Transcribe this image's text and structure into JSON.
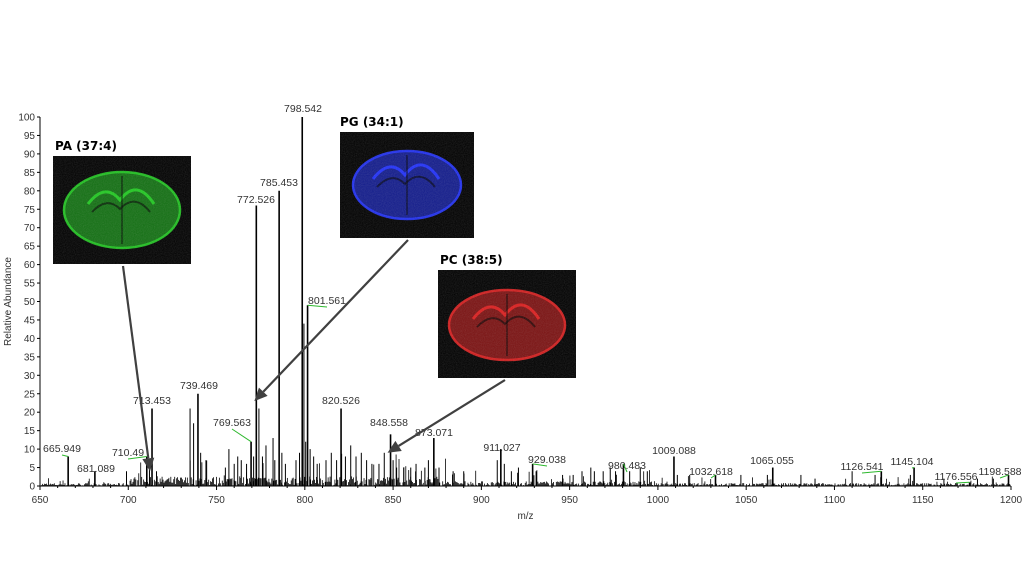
{
  "chart_data": {
    "type": "bar",
    "title": "",
    "xlabel": "m/z",
    "ylabel": "Relative Abundance",
    "xlim": [
      650,
      1200
    ],
    "ylim": [
      0,
      100
    ],
    "x_ticks": [
      "650",
      "700",
      "750",
      "800",
      "850",
      "900",
      "950",
      "1000",
      "1050",
      "1100",
      "1150",
      "1200"
    ],
    "y_ticks": [
      "0",
      "5",
      "10",
      "15",
      "20",
      "25",
      "30",
      "35",
      "40",
      "45",
      "50",
      "55",
      "60",
      "65",
      "70",
      "75",
      "80",
      "85",
      "90",
      "95",
      "100"
    ],
    "grid": false,
    "labeled_peaks": [
      {
        "mz": 665.949,
        "y": 8,
        "label": "665.949"
      },
      {
        "mz": 681.089,
        "y": 4,
        "label": "681.089"
      },
      {
        "mz": 710.49,
        "y": 8,
        "label": "710.49"
      },
      {
        "mz": 713.453,
        "y": 21,
        "label": "713.453"
      },
      {
        "mz": 739.469,
        "y": 25,
        "label": "739.469"
      },
      {
        "mz": 769.563,
        "y": 12,
        "label": "769.563"
      },
      {
        "mz": 772.526,
        "y": 76,
        "label": "772.526"
      },
      {
        "mz": 785.453,
        "y": 80,
        "label": "785.453"
      },
      {
        "mz": 798.542,
        "y": 100,
        "label": "798.542"
      },
      {
        "mz": 801.561,
        "y": 49,
        "label": "801.561"
      },
      {
        "mz": 820.526,
        "y": 21,
        "label": "820.526"
      },
      {
        "mz": 848.558,
        "y": 14,
        "label": "848.558"
      },
      {
        "mz": 873.071,
        "y": 13,
        "label": "873.071"
      },
      {
        "mz": 911.027,
        "y": 10,
        "label": "911.027"
      },
      {
        "mz": 929.038,
        "y": 6,
        "label": "929.038"
      },
      {
        "mz": 980.483,
        "y": 6,
        "label": "980.483"
      },
      {
        "mz": 1009.088,
        "y": 8,
        "label": "1009.088"
      },
      {
        "mz": 1032.618,
        "y": 3,
        "label": "1032.618"
      },
      {
        "mz": 1065.055,
        "y": 5,
        "label": "1065.055"
      },
      {
        "mz": 1126.541,
        "y": 4,
        "label": "1126.541"
      },
      {
        "mz": 1145.104,
        "y": 5,
        "label": "1145.104"
      },
      {
        "mz": 1176.556,
        "y": 1,
        "label": "1176.556"
      },
      {
        "mz": 1198.588,
        "y": 3,
        "label": "1198.588"
      }
    ],
    "insets": [
      {
        "title": "PA (37:4)",
        "color": "#22cc22",
        "points_to_mz": 713.453
      },
      {
        "title": "PG (34:1)",
        "color": "#2233ff",
        "points_to_mz": 772.526
      },
      {
        "title": "PC (38:5)",
        "color": "#e02020",
        "points_to_mz": 848.558
      }
    ],
    "colors": {
      "spectrum": "#000000",
      "leader": "#2db82d",
      "arrow": "#404040"
    }
  }
}
